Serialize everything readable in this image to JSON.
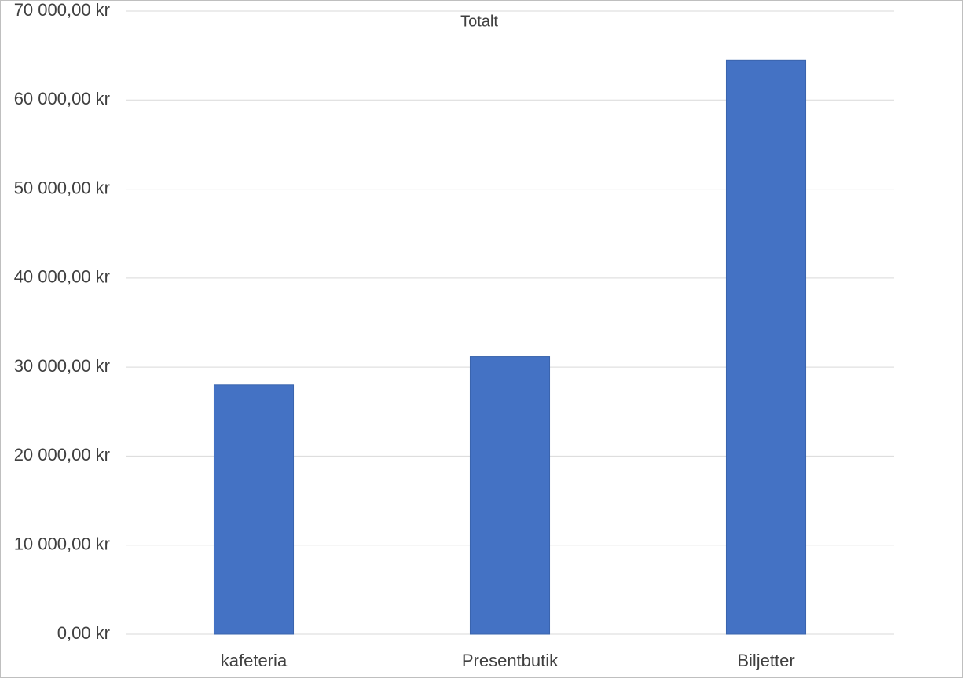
{
  "chart_data": {
    "type": "bar",
    "title": "Totalt",
    "categories": [
      "kafeteria",
      "Presentbutik",
      "Biljetter"
    ],
    "values": [
      28000,
      31200,
      64500
    ],
    "color": "#4472c4",
    "ylim": [
      0,
      70000
    ],
    "yticks": [
      {
        "value": 0,
        "label": "0,00 kr"
      },
      {
        "value": 10000,
        "label": "10 000,00 kr"
      },
      {
        "value": 20000,
        "label": "20 000,00 kr"
      },
      {
        "value": 30000,
        "label": "30 000,00 kr"
      },
      {
        "value": 40000,
        "label": "40 000,00 kr"
      },
      {
        "value": 50000,
        "label": "50 000,00 kr"
      },
      {
        "value": 60000,
        "label": "60 000,00 kr"
      },
      {
        "value": 70000,
        "label": "70 000,00 kr"
      }
    ],
    "grid": true
  }
}
